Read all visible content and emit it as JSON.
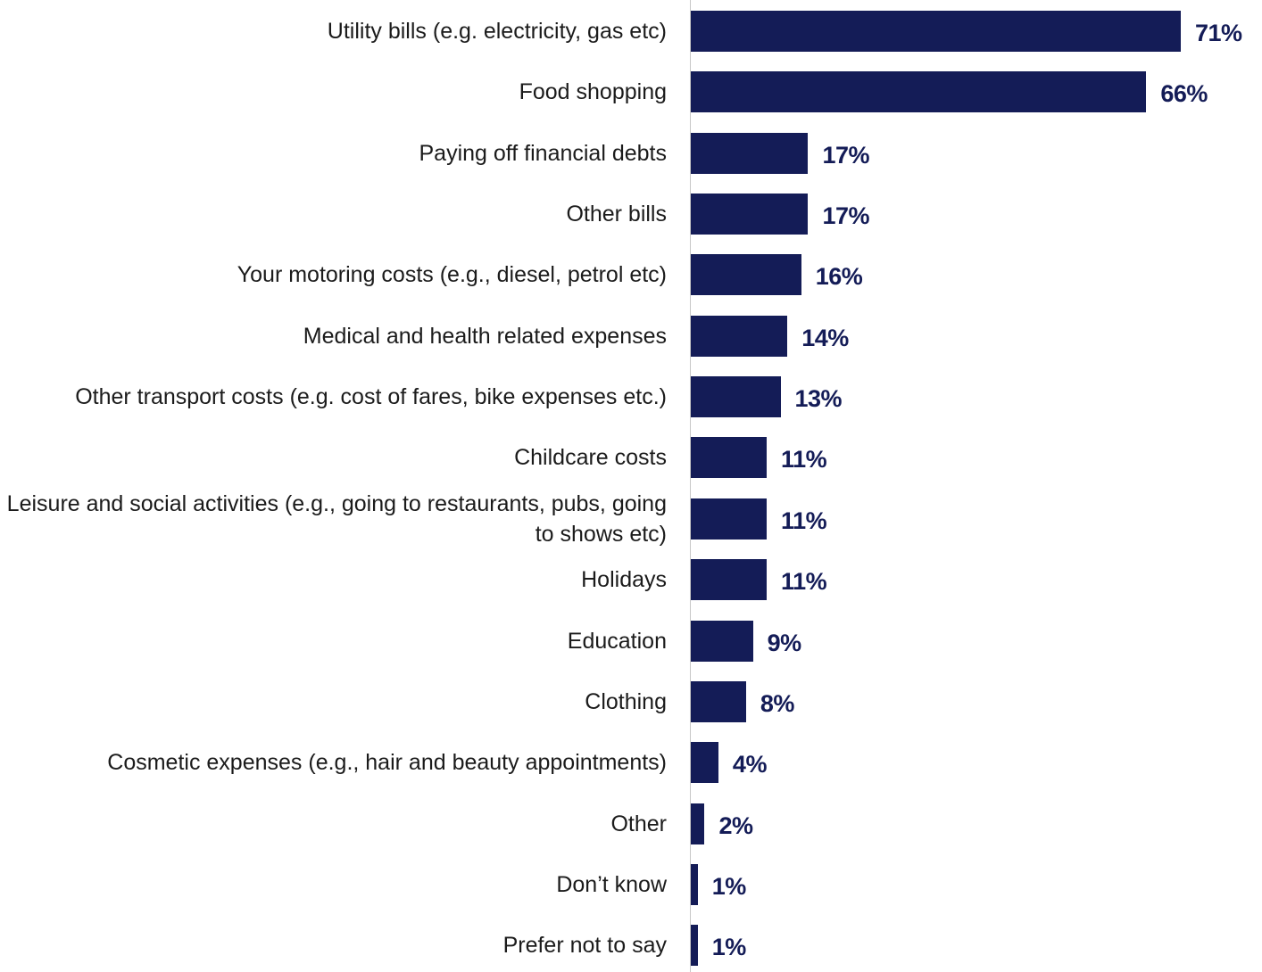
{
  "chart_data": {
    "type": "bar",
    "orientation": "horizontal",
    "categories": [
      "Utility bills (e.g. electricity, gas etc)",
      "Food shopping",
      "Paying off financial debts",
      "Other bills",
      "Your motoring costs (e.g., diesel, petrol etc)",
      "Medical and health related expenses",
      "Other transport costs (e.g. cost of fares, bike expenses etc.)",
      "Childcare costs",
      "Leisure and social activities (e.g., going to restaurants, pubs, going to shows etc)",
      "Holidays",
      "Education",
      "Clothing",
      "Cosmetic expenses (e.g., hair and beauty appointments)",
      "Other",
      "Don’t know",
      "Prefer not to say"
    ],
    "values": [
      71,
      66,
      17,
      17,
      16,
      14,
      13,
      11,
      11,
      11,
      9,
      8,
      4,
      2,
      1,
      1
    ],
    "value_labels": [
      "71%",
      "66%",
      "17%",
      "17%",
      "16%",
      "14%",
      "13%",
      "11%",
      "11%",
      "11%",
      "9%",
      "8%",
      "4%",
      "2%",
      "1%",
      "1%"
    ],
    "unit": "%",
    "xlim": [
      0,
      100
    ],
    "grid": false,
    "legend": "none",
    "colors": {
      "bar": "#141c57",
      "value_label": "#141c57",
      "category_label": "#1b1b1b",
      "axis": "#c8c8c8"
    }
  }
}
